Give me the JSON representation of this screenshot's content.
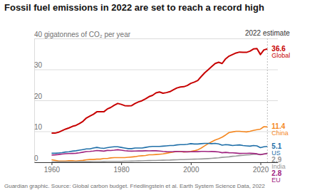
{
  "chart_data": {
    "type": "line",
    "title": "Fossil fuel emissions in 2022 are set to reach a record high",
    "source": "Guardian graphic. Source: Global carbon budget. Friedlingstein et al. Earth System Science Data, 2022",
    "x": [
      1960,
      1961,
      1962,
      1963,
      1964,
      1965,
      1966,
      1967,
      1968,
      1969,
      1970,
      1971,
      1972,
      1973,
      1974,
      1975,
      1976,
      1977,
      1978,
      1979,
      1980,
      1981,
      1982,
      1983,
      1984,
      1985,
      1986,
      1987,
      1988,
      1989,
      1990,
      1991,
      1992,
      1993,
      1994,
      1995,
      1996,
      1997,
      1998,
      1999,
      2000,
      2001,
      2002,
      2003,
      2004,
      2005,
      2006,
      2007,
      2008,
      2009,
      2010,
      2011,
      2012,
      2013,
      2014,
      2015,
      2016,
      2017,
      2018,
      2019,
      2020,
      2021,
      2022
    ],
    "series": [
      {
        "name": "Global",
        "color": "#c70000",
        "values": [
          9.4,
          9.4,
          9.7,
          10.2,
          10.7,
          11.1,
          11.6,
          11.9,
          12.5,
          13.2,
          14.3,
          14.9,
          15.5,
          16.3,
          16.3,
          16.3,
          17.2,
          17.7,
          18.4,
          19.0,
          18.7,
          18.3,
          18.2,
          18.3,
          19.0,
          19.5,
          19.9,
          20.5,
          21.2,
          21.6,
          22.4,
          22.7,
          22.3,
          22.5,
          22.8,
          23.4,
          24.0,
          24.3,
          24.4,
          24.8,
          25.5,
          25.9,
          26.4,
          27.7,
          28.9,
          29.9,
          30.9,
          31.9,
          32.3,
          31.9,
          33.4,
          34.3,
          34.8,
          35.3,
          35.6,
          35.5,
          35.5,
          35.9,
          36.6,
          36.7,
          34.8,
          36.3,
          36.6
        ]
      },
      {
        "name": "China",
        "color": "#f5871f",
        "values": [
          0.8,
          0.6,
          0.4,
          0.4,
          0.4,
          0.5,
          0.5,
          0.4,
          0.5,
          0.6,
          0.8,
          0.9,
          0.9,
          1.0,
          1.0,
          1.2,
          1.2,
          1.4,
          1.5,
          1.5,
          1.5,
          1.5,
          1.6,
          1.7,
          1.8,
          2.0,
          2.1,
          2.2,
          2.4,
          2.4,
          2.5,
          2.6,
          2.7,
          2.9,
          3.1,
          3.3,
          3.5,
          3.5,
          3.3,
          3.4,
          3.5,
          3.7,
          4.0,
          4.6,
          5.3,
          6.0,
          6.6,
          7.2,
          7.6,
          8.1,
          8.8,
          9.6,
          9.8,
          10.0,
          10.0,
          9.9,
          9.8,
          10.0,
          10.3,
          10.5,
          10.7,
          11.5,
          11.4
        ]
      },
      {
        "name": "US",
        "color": "#1f6fa8",
        "values": [
          2.9,
          2.9,
          3.0,
          3.1,
          3.3,
          3.4,
          3.6,
          3.7,
          3.9,
          4.1,
          4.3,
          4.3,
          4.6,
          4.8,
          4.6,
          4.5,
          4.7,
          4.9,
          5.0,
          5.0,
          4.8,
          4.6,
          4.4,
          4.4,
          4.6,
          4.6,
          4.6,
          4.8,
          5.0,
          5.1,
          5.1,
          5.1,
          5.2,
          5.3,
          5.4,
          5.4,
          5.6,
          5.7,
          5.7,
          5.8,
          6.0,
          5.9,
          5.9,
          6.0,
          6.1,
          6.1,
          6.0,
          6.1,
          5.9,
          5.5,
          5.7,
          5.6,
          5.4,
          5.5,
          5.6,
          5.4,
          5.3,
          5.2,
          5.4,
          5.3,
          4.7,
          5.0,
          5.1
        ]
      },
      {
        "name": "India",
        "color": "#999999",
        "values": [
          0.12,
          0.13,
          0.14,
          0.15,
          0.15,
          0.17,
          0.17,
          0.18,
          0.19,
          0.19,
          0.2,
          0.21,
          0.22,
          0.23,
          0.24,
          0.26,
          0.27,
          0.28,
          0.29,
          0.3,
          0.3,
          0.33,
          0.35,
          0.37,
          0.4,
          0.44,
          0.47,
          0.5,
          0.54,
          0.58,
          0.58,
          0.62,
          0.66,
          0.69,
          0.72,
          0.78,
          0.82,
          0.85,
          0.87,
          0.93,
          0.98,
          1.0,
          1.02,
          1.06,
          1.11,
          1.18,
          1.26,
          1.35,
          1.45,
          1.59,
          1.68,
          1.76,
          1.92,
          2.01,
          2.16,
          2.24,
          2.34,
          2.43,
          2.58,
          2.62,
          2.44,
          2.71,
          2.9
        ]
      },
      {
        "name": "EU",
        "color": "#a0237f",
        "values": [
          2.3,
          2.38,
          2.5,
          2.65,
          2.75,
          2.82,
          2.85,
          2.9,
          3.05,
          3.25,
          3.45,
          3.5,
          3.62,
          3.8,
          3.7,
          3.6,
          3.82,
          3.8,
          3.9,
          4.05,
          3.9,
          3.75,
          3.65,
          3.6,
          3.62,
          3.68,
          3.65,
          3.7,
          3.68,
          3.7,
          3.7,
          3.62,
          3.5,
          3.42,
          3.4,
          3.42,
          3.5,
          3.44,
          3.42,
          3.36,
          3.38,
          3.45,
          3.42,
          3.5,
          3.5,
          3.45,
          3.47,
          3.42,
          3.35,
          3.08,
          3.18,
          3.08,
          3.04,
          2.96,
          2.84,
          2.88,
          2.88,
          2.9,
          2.84,
          2.72,
          2.46,
          2.65,
          2.8
        ]
      }
    ],
    "xlim": [
      1955,
      2025
    ],
    "xticks": [
      1960,
      1980,
      2000,
      2020
    ],
    "ylim": [
      0,
      40
    ],
    "yticks": [
      0,
      10,
      20,
      30,
      {
        "value": 40,
        "label": "40 gigatonnes of CO₂ per year"
      }
    ],
    "grid": true,
    "annotations": [
      {
        "text": "2022 estimate",
        "x": 2022
      }
    ]
  }
}
